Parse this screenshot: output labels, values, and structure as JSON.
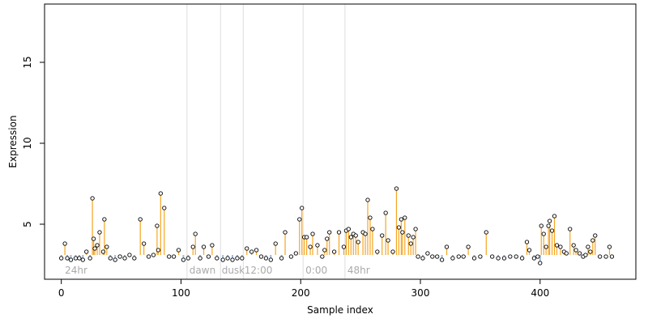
{
  "chart_data": {
    "type": "scatter",
    "title": "",
    "xlabel": "Sample index",
    "ylabel": "Expression",
    "xlim": [
      -14,
      480
    ],
    "ylim": [
      1.6,
      18.6
    ],
    "xticks": [
      0,
      100,
      200,
      300,
      400
    ],
    "yticks": [
      5,
      10,
      15
    ],
    "grid": false,
    "legend": "none",
    "baseline": 3.1,
    "colors": {
      "above": "#f5a623",
      "below": "#9ab8e0",
      "point_stroke": "#000000",
      "point_fill": "#ffffff",
      "vline": "#dddddd",
      "region_label": "#aaaaaa",
      "axis": "#000000"
    },
    "region_lines": [
      105,
      133,
      152,
      202,
      237
    ],
    "region_labels": [
      {
        "x": 3,
        "text": "24hr"
      },
      {
        "x": 107,
        "text": "dawn"
      },
      {
        "x": 134,
        "text": "dusk"
      },
      {
        "x": 153,
        "text": "12:00"
      },
      {
        "x": 204,
        "text": "0:00"
      },
      {
        "x": 239,
        "text": "48hr"
      }
    ],
    "points": [
      [
        0,
        2.9
      ],
      [
        3,
        3.8
      ],
      [
        5,
        2.9
      ],
      [
        8,
        2.8
      ],
      [
        12,
        2.9
      ],
      [
        15,
        2.9
      ],
      [
        18,
        2.8
      ],
      [
        21,
        3.3
      ],
      [
        24,
        2.9
      ],
      [
        26,
        6.6
      ],
      [
        27,
        4.1
      ],
      [
        28,
        3.5
      ],
      [
        30,
        3.7
      ],
      [
        32,
        4.5
      ],
      [
        35,
        3.3
      ],
      [
        36,
        5.3
      ],
      [
        38,
        3.6
      ],
      [
        41,
        2.9
      ],
      [
        45,
        2.8
      ],
      [
        49,
        3.0
      ],
      [
        53,
        2.9
      ],
      [
        57,
        3.1
      ],
      [
        61,
        2.9
      ],
      [
        66,
        5.3
      ],
      [
        69,
        3.8
      ],
      [
        73,
        3.0
      ],
      [
        77,
        3.1
      ],
      [
        80,
        4.9
      ],
      [
        81,
        3.4
      ],
      [
        83,
        6.9
      ],
      [
        86,
        6.0
      ],
      [
        90,
        3.0
      ],
      [
        94,
        3.0
      ],
      [
        98,
        3.4
      ],
      [
        102,
        2.8
      ],
      [
        106,
        2.9
      ],
      [
        110,
        3.6
      ],
      [
        112,
        4.4
      ],
      [
        116,
        2.9
      ],
      [
        119,
        3.6
      ],
      [
        123,
        3.0
      ],
      [
        126,
        3.7
      ],
      [
        130,
        2.9
      ],
      [
        135,
        2.8
      ],
      [
        139,
        2.9
      ],
      [
        143,
        2.8
      ],
      [
        147,
        2.9
      ],
      [
        151,
        2.9
      ],
      [
        155,
        3.5
      ],
      [
        159,
        3.3
      ],
      [
        163,
        3.4
      ],
      [
        167,
        3.0
      ],
      [
        171,
        2.9
      ],
      [
        175,
        2.8
      ],
      [
        179,
        3.8
      ],
      [
        184,
        2.9
      ],
      [
        187,
        4.5
      ],
      [
        192,
        3.0
      ],
      [
        196,
        3.2
      ],
      [
        199,
        5.3
      ],
      [
        201,
        6.0
      ],
      [
        203,
        4.2
      ],
      [
        205,
        4.2
      ],
      [
        208,
        3.6
      ],
      [
        210,
        4.4
      ],
      [
        214,
        3.7
      ],
      [
        218,
        3.0
      ],
      [
        220,
        3.4
      ],
      [
        222,
        4.1
      ],
      [
        224,
        4.5
      ],
      [
        228,
        3.3
      ],
      [
        232,
        4.5
      ],
      [
        236,
        3.6
      ],
      [
        238,
        4.6
      ],
      [
        240,
        4.7
      ],
      [
        242,
        4.2
      ],
      [
        244,
        4.4
      ],
      [
        246,
        4.3
      ],
      [
        248,
        3.9
      ],
      [
        252,
        4.5
      ],
      [
        254,
        4.4
      ],
      [
        256,
        6.5
      ],
      [
        258,
        5.4
      ],
      [
        260,
        4.7
      ],
      [
        264,
        3.3
      ],
      [
        268,
        4.3
      ],
      [
        271,
        5.7
      ],
      [
        273,
        4.0
      ],
      [
        277,
        3.3
      ],
      [
        280,
        7.2
      ],
      [
        282,
        4.8
      ],
      [
        284,
        5.3
      ],
      [
        285,
        4.5
      ],
      [
        287,
        5.4
      ],
      [
        290,
        4.3
      ],
      [
        292,
        3.8
      ],
      [
        294,
        4.2
      ],
      [
        296,
        4.7
      ],
      [
        298,
        3.0
      ],
      [
        302,
        2.9
      ],
      [
        306,
        3.2
      ],
      [
        310,
        3.0
      ],
      [
        314,
        3.0
      ],
      [
        318,
        2.8
      ],
      [
        322,
        3.6
      ],
      [
        327,
        2.9
      ],
      [
        332,
        3.0
      ],
      [
        336,
        3.0
      ],
      [
        340,
        3.6
      ],
      [
        345,
        2.9
      ],
      [
        350,
        3.0
      ],
      [
        355,
        4.5
      ],
      [
        360,
        3.0
      ],
      [
        365,
        2.9
      ],
      [
        370,
        2.9
      ],
      [
        375,
        3.0
      ],
      [
        380,
        3.0
      ],
      [
        385,
        2.9
      ],
      [
        389,
        3.9
      ],
      [
        391,
        3.4
      ],
      [
        395,
        2.9
      ],
      [
        398,
        3.0
      ],
      [
        400,
        2.6
      ],
      [
        401,
        4.9
      ],
      [
        403,
        4.4
      ],
      [
        405,
        3.6
      ],
      [
        407,
        4.9
      ],
      [
        408,
        5.2
      ],
      [
        410,
        4.6
      ],
      [
        412,
        5.5
      ],
      [
        414,
        3.7
      ],
      [
        417,
        3.6
      ],
      [
        420,
        3.3
      ],
      [
        422,
        3.2
      ],
      [
        425,
        4.7
      ],
      [
        428,
        3.7
      ],
      [
        430,
        3.4
      ],
      [
        433,
        3.2
      ],
      [
        436,
        3.0
      ],
      [
        438,
        3.1
      ],
      [
        440,
        3.6
      ],
      [
        442,
        3.3
      ],
      [
        444,
        4.0
      ],
      [
        446,
        4.3
      ],
      [
        450,
        3.0
      ],
      [
        455,
        3.0
      ],
      [
        458,
        3.6
      ],
      [
        460,
        3.0
      ]
    ]
  }
}
